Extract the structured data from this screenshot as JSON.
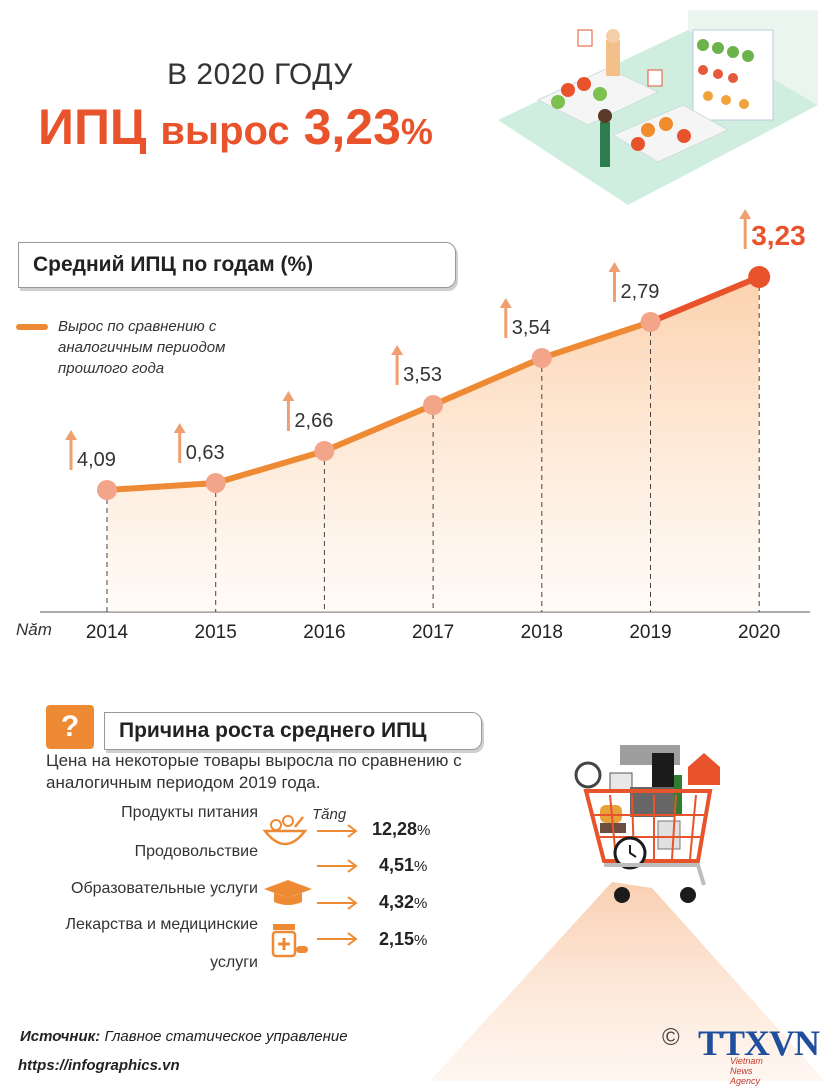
{
  "header": {
    "line1": "В 2020 ГОДУ",
    "line2_part1": "ИПЦ",
    "line2_part2": "вырос",
    "line2_value": "3,23",
    "line2_pct": "%"
  },
  "chart_title": "Средний ИПЦ по годам (%)",
  "legend_text": "Вырос по сравнению с аналогичным периодом прошлого года",
  "x_axis_label": "Năm",
  "chart_data": {
    "type": "line",
    "title": "Средний ИПЦ по годам (%)",
    "x": [
      "2014",
      "2015",
      "2016",
      "2017",
      "2018",
      "2019",
      "2020"
    ],
    "values": [
      4.09,
      0.63,
      2.66,
      3.53,
      3.54,
      2.79,
      3.23
    ],
    "value_labels": [
      "4,09",
      "0,63",
      "2,66",
      "3,53",
      "3,54",
      "2,79",
      "3,23"
    ],
    "highlight_index": 6,
    "colors": {
      "line": "#ef8a34",
      "highlight": "#e8532c",
      "marker": "#f3a58a",
      "fill": "#fde3c8"
    }
  },
  "reason": {
    "icon": "?",
    "title": "Причина роста среднего ИПЦ",
    "description": "Цена на некоторые товары выросла по сравнению с аналогичным периодом 2019 года.",
    "increase_label": "Tăng",
    "items": [
      {
        "label": "Продукты питания",
        "value": "12,28",
        "unit": "%",
        "icon": "food-bowl-icon"
      },
      {
        "label": "Продовольствие",
        "value": "4,51",
        "unit": "%",
        "icon": ""
      },
      {
        "label": "Образовательные услуги",
        "value": "4,32",
        "unit": "%",
        "icon": "graduation-cap-icon"
      },
      {
        "label": "Лекарства и медицинские услуги",
        "label_line1": "Лекарства и медицинские",
        "label_line2": "услуги",
        "value": "2,15",
        "unit": "%",
        "icon": "medicine-icon"
      }
    ]
  },
  "footer": {
    "source_label": "Источник:",
    "source_text": "Главное статическое управление",
    "site": "https://infographics.vn",
    "logo_copyright": "©",
    "logo": "TTXVN",
    "logo_sub": "Vietnam News Agency"
  },
  "accent_color": "#e8532c"
}
